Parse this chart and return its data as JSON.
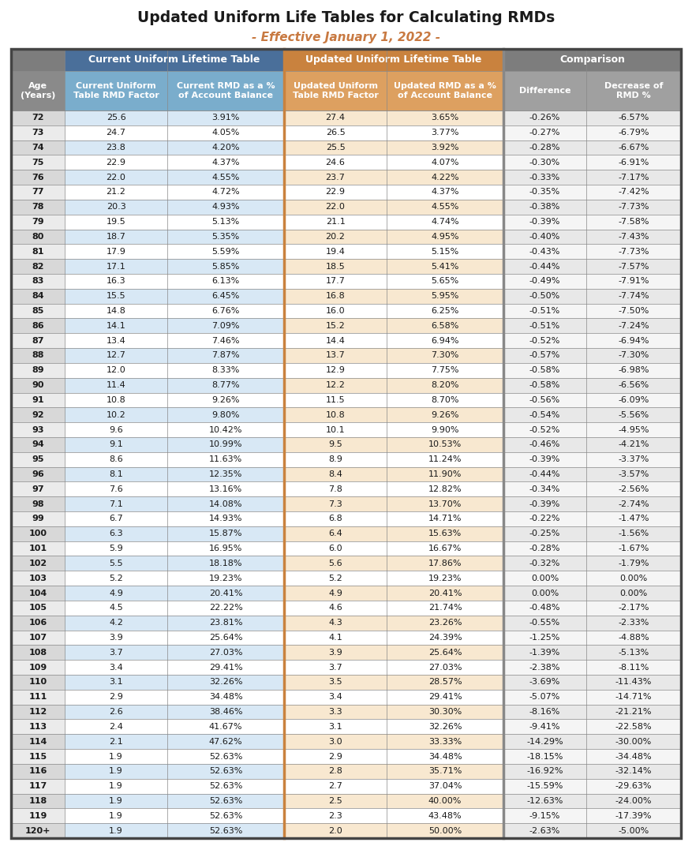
{
  "title": "Updated Uniform Life Tables for Calculating RMDs",
  "subtitle": "- Effective January 1, 2022 -",
  "title_color": "#1a1a1a",
  "subtitle_color": "#c87941",
  "col_headers_row2": [
    "Age\n(Years)",
    "Current Uniform\nTable RMD Factor",
    "Current RMD as a %\nof Account Balance",
    "Updated Uniform\nTable RMD Factor",
    "Updated RMD as a %\nof Account Balance",
    "Difference",
    "Decrease of\nRMD %"
  ],
  "rows": [
    [
      "72",
      "25.6",
      "3.91%",
      "27.4",
      "3.65%",
      "-0.26%",
      "-6.57%"
    ],
    [
      "73",
      "24.7",
      "4.05%",
      "26.5",
      "3.77%",
      "-0.27%",
      "-6.79%"
    ],
    [
      "74",
      "23.8",
      "4.20%",
      "25.5",
      "3.92%",
      "-0.28%",
      "-6.67%"
    ],
    [
      "75",
      "22.9",
      "4.37%",
      "24.6",
      "4.07%",
      "-0.30%",
      "-6.91%"
    ],
    [
      "76",
      "22.0",
      "4.55%",
      "23.7",
      "4.22%",
      "-0.33%",
      "-7.17%"
    ],
    [
      "77",
      "21.2",
      "4.72%",
      "22.9",
      "4.37%",
      "-0.35%",
      "-7.42%"
    ],
    [
      "78",
      "20.3",
      "4.93%",
      "22.0",
      "4.55%",
      "-0.38%",
      "-7.73%"
    ],
    [
      "79",
      "19.5",
      "5.13%",
      "21.1",
      "4.74%",
      "-0.39%",
      "-7.58%"
    ],
    [
      "80",
      "18.7",
      "5.35%",
      "20.2",
      "4.95%",
      "-0.40%",
      "-7.43%"
    ],
    [
      "81",
      "17.9",
      "5.59%",
      "19.4",
      "5.15%",
      "-0.43%",
      "-7.73%"
    ],
    [
      "82",
      "17.1",
      "5.85%",
      "18.5",
      "5.41%",
      "-0.44%",
      "-7.57%"
    ],
    [
      "83",
      "16.3",
      "6.13%",
      "17.7",
      "5.65%",
      "-0.49%",
      "-7.91%"
    ],
    [
      "84",
      "15.5",
      "6.45%",
      "16.8",
      "5.95%",
      "-0.50%",
      "-7.74%"
    ],
    [
      "85",
      "14.8",
      "6.76%",
      "16.0",
      "6.25%",
      "-0.51%",
      "-7.50%"
    ],
    [
      "86",
      "14.1",
      "7.09%",
      "15.2",
      "6.58%",
      "-0.51%",
      "-7.24%"
    ],
    [
      "87",
      "13.4",
      "7.46%",
      "14.4",
      "6.94%",
      "-0.52%",
      "-6.94%"
    ],
    [
      "88",
      "12.7",
      "7.87%",
      "13.7",
      "7.30%",
      "-0.57%",
      "-7.30%"
    ],
    [
      "89",
      "12.0",
      "8.33%",
      "12.9",
      "7.75%",
      "-0.58%",
      "-6.98%"
    ],
    [
      "90",
      "11.4",
      "8.77%",
      "12.2",
      "8.20%",
      "-0.58%",
      "-6.56%"
    ],
    [
      "91",
      "10.8",
      "9.26%",
      "11.5",
      "8.70%",
      "-0.56%",
      "-6.09%"
    ],
    [
      "92",
      "10.2",
      "9.80%",
      "10.8",
      "9.26%",
      "-0.54%",
      "-5.56%"
    ],
    [
      "93",
      "9.6",
      "10.42%",
      "10.1",
      "9.90%",
      "-0.52%",
      "-4.95%"
    ],
    [
      "94",
      "9.1",
      "10.99%",
      "9.5",
      "10.53%",
      "-0.46%",
      "-4.21%"
    ],
    [
      "95",
      "8.6",
      "11.63%",
      "8.9",
      "11.24%",
      "-0.39%",
      "-3.37%"
    ],
    [
      "96",
      "8.1",
      "12.35%",
      "8.4",
      "11.90%",
      "-0.44%",
      "-3.57%"
    ],
    [
      "97",
      "7.6",
      "13.16%",
      "7.8",
      "12.82%",
      "-0.34%",
      "-2.56%"
    ],
    [
      "98",
      "7.1",
      "14.08%",
      "7.3",
      "13.70%",
      "-0.39%",
      "-2.74%"
    ],
    [
      "99",
      "6.7",
      "14.93%",
      "6.8",
      "14.71%",
      "-0.22%",
      "-1.47%"
    ],
    [
      "100",
      "6.3",
      "15.87%",
      "6.4",
      "15.63%",
      "-0.25%",
      "-1.56%"
    ],
    [
      "101",
      "5.9",
      "16.95%",
      "6.0",
      "16.67%",
      "-0.28%",
      "-1.67%"
    ],
    [
      "102",
      "5.5",
      "18.18%",
      "5.6",
      "17.86%",
      "-0.32%",
      "-1.79%"
    ],
    [
      "103",
      "5.2",
      "19.23%",
      "5.2",
      "19.23%",
      "0.00%",
      "0.00%"
    ],
    [
      "104",
      "4.9",
      "20.41%",
      "4.9",
      "20.41%",
      "0.00%",
      "0.00%"
    ],
    [
      "105",
      "4.5",
      "22.22%",
      "4.6",
      "21.74%",
      "-0.48%",
      "-2.17%"
    ],
    [
      "106",
      "4.2",
      "23.81%",
      "4.3",
      "23.26%",
      "-0.55%",
      "-2.33%"
    ],
    [
      "107",
      "3.9",
      "25.64%",
      "4.1",
      "24.39%",
      "-1.25%",
      "-4.88%"
    ],
    [
      "108",
      "3.7",
      "27.03%",
      "3.9",
      "25.64%",
      "-1.39%",
      "-5.13%"
    ],
    [
      "109",
      "3.4",
      "29.41%",
      "3.7",
      "27.03%",
      "-2.38%",
      "-8.11%"
    ],
    [
      "110",
      "3.1",
      "32.26%",
      "3.5",
      "28.57%",
      "-3.69%",
      "-11.43%"
    ],
    [
      "111",
      "2.9",
      "34.48%",
      "3.4",
      "29.41%",
      "-5.07%",
      "-14.71%"
    ],
    [
      "112",
      "2.6",
      "38.46%",
      "3.3",
      "30.30%",
      "-8.16%",
      "-21.21%"
    ],
    [
      "113",
      "2.4",
      "41.67%",
      "3.1",
      "32.26%",
      "-9.41%",
      "-22.58%"
    ],
    [
      "114",
      "2.1",
      "47.62%",
      "3.0",
      "33.33%",
      "-14.29%",
      "-30.00%"
    ],
    [
      "115",
      "1.9",
      "52.63%",
      "2.9",
      "34.48%",
      "-18.15%",
      "-34.48%"
    ],
    [
      "116",
      "1.9",
      "52.63%",
      "2.8",
      "35.71%",
      "-16.92%",
      "-32.14%"
    ],
    [
      "117",
      "1.9",
      "52.63%",
      "2.7",
      "37.04%",
      "-15.59%",
      "-29.63%"
    ],
    [
      "118",
      "1.9",
      "52.63%",
      "2.5",
      "40.00%",
      "-12.63%",
      "-24.00%"
    ],
    [
      "119",
      "1.9",
      "52.63%",
      "2.3",
      "43.48%",
      "-9.15%",
      "-17.39%"
    ],
    [
      "120+",
      "1.9",
      "52.63%",
      "2.0",
      "50.00%",
      "-2.63%",
      "-5.00%"
    ]
  ],
  "header1_blue_bg": "#4a6f9a",
  "header1_orange_bg": "#c9823e",
  "header1_gray_bg": "#7d7d7d",
  "header2_age_bg": "#8a8a8a",
  "header2_blue_bg": "#7aadcc",
  "header2_orange_bg": "#dda060",
  "header2_gray_bg": "#a0a0a0",
  "age_col_bg_even": "#d8d8d8",
  "age_col_bg_odd": "#ebebeb",
  "row_blue_even": "#d8e8f5",
  "row_blue_odd": "#ffffff",
  "row_orange_even": "#f8e8d0",
  "row_orange_odd": "#ffffff",
  "row_gray_even": "#e8e8e8",
  "row_gray_odd": "#f5f5f5",
  "line_color": "#888888",
  "border_color": "#444444",
  "orange_sep_color": "#c9823e",
  "text_dark": "#1a1a1a",
  "text_white": "#ffffff"
}
